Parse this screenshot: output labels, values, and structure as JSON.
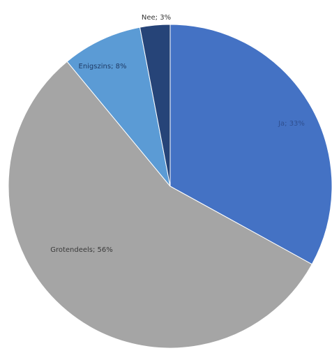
{
  "chart_data": {
    "type": "pie",
    "title": "",
    "slices": [
      {
        "label": "Ja",
        "value": 33,
        "display": "Ja; 33%",
        "color": "#4472C4"
      },
      {
        "label": "Grotendeels",
        "value": 56,
        "display": "Grotendeels; 56%",
        "color": "#A5A5A5"
      },
      {
        "label": "Enigszins",
        "value": 8,
        "display": "Enigszins; 8%",
        "color": "#5B9BD5"
      },
      {
        "label": "Nee",
        "value": 3,
        "display": "Nee; 3%",
        "color": "#264478"
      }
    ],
    "legend": "none",
    "start_angle_deg": 0,
    "direction": "clockwise"
  }
}
